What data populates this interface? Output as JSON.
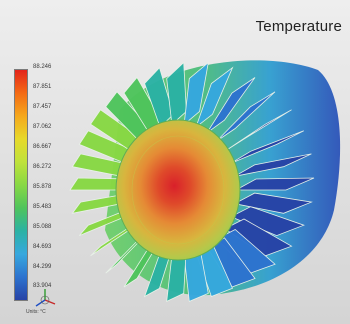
{
  "view": {
    "title": "Temperature",
    "units": "Units: °C",
    "legend_values": [
      "88.246",
      "87.851",
      "87.457",
      "87.062",
      "86.667",
      "86.272",
      "85.878",
      "85.483",
      "85.088",
      "84.693",
      "84.299",
      "83.904"
    ],
    "color_scale": [
      "#e3241b",
      "#f46a14",
      "#f5a81c",
      "#e7d92a",
      "#bfe23a",
      "#88d844",
      "#4fc45c",
      "#2bb2a4",
      "#36a8de",
      "#2d73cf",
      "#2743a6"
    ]
  }
}
